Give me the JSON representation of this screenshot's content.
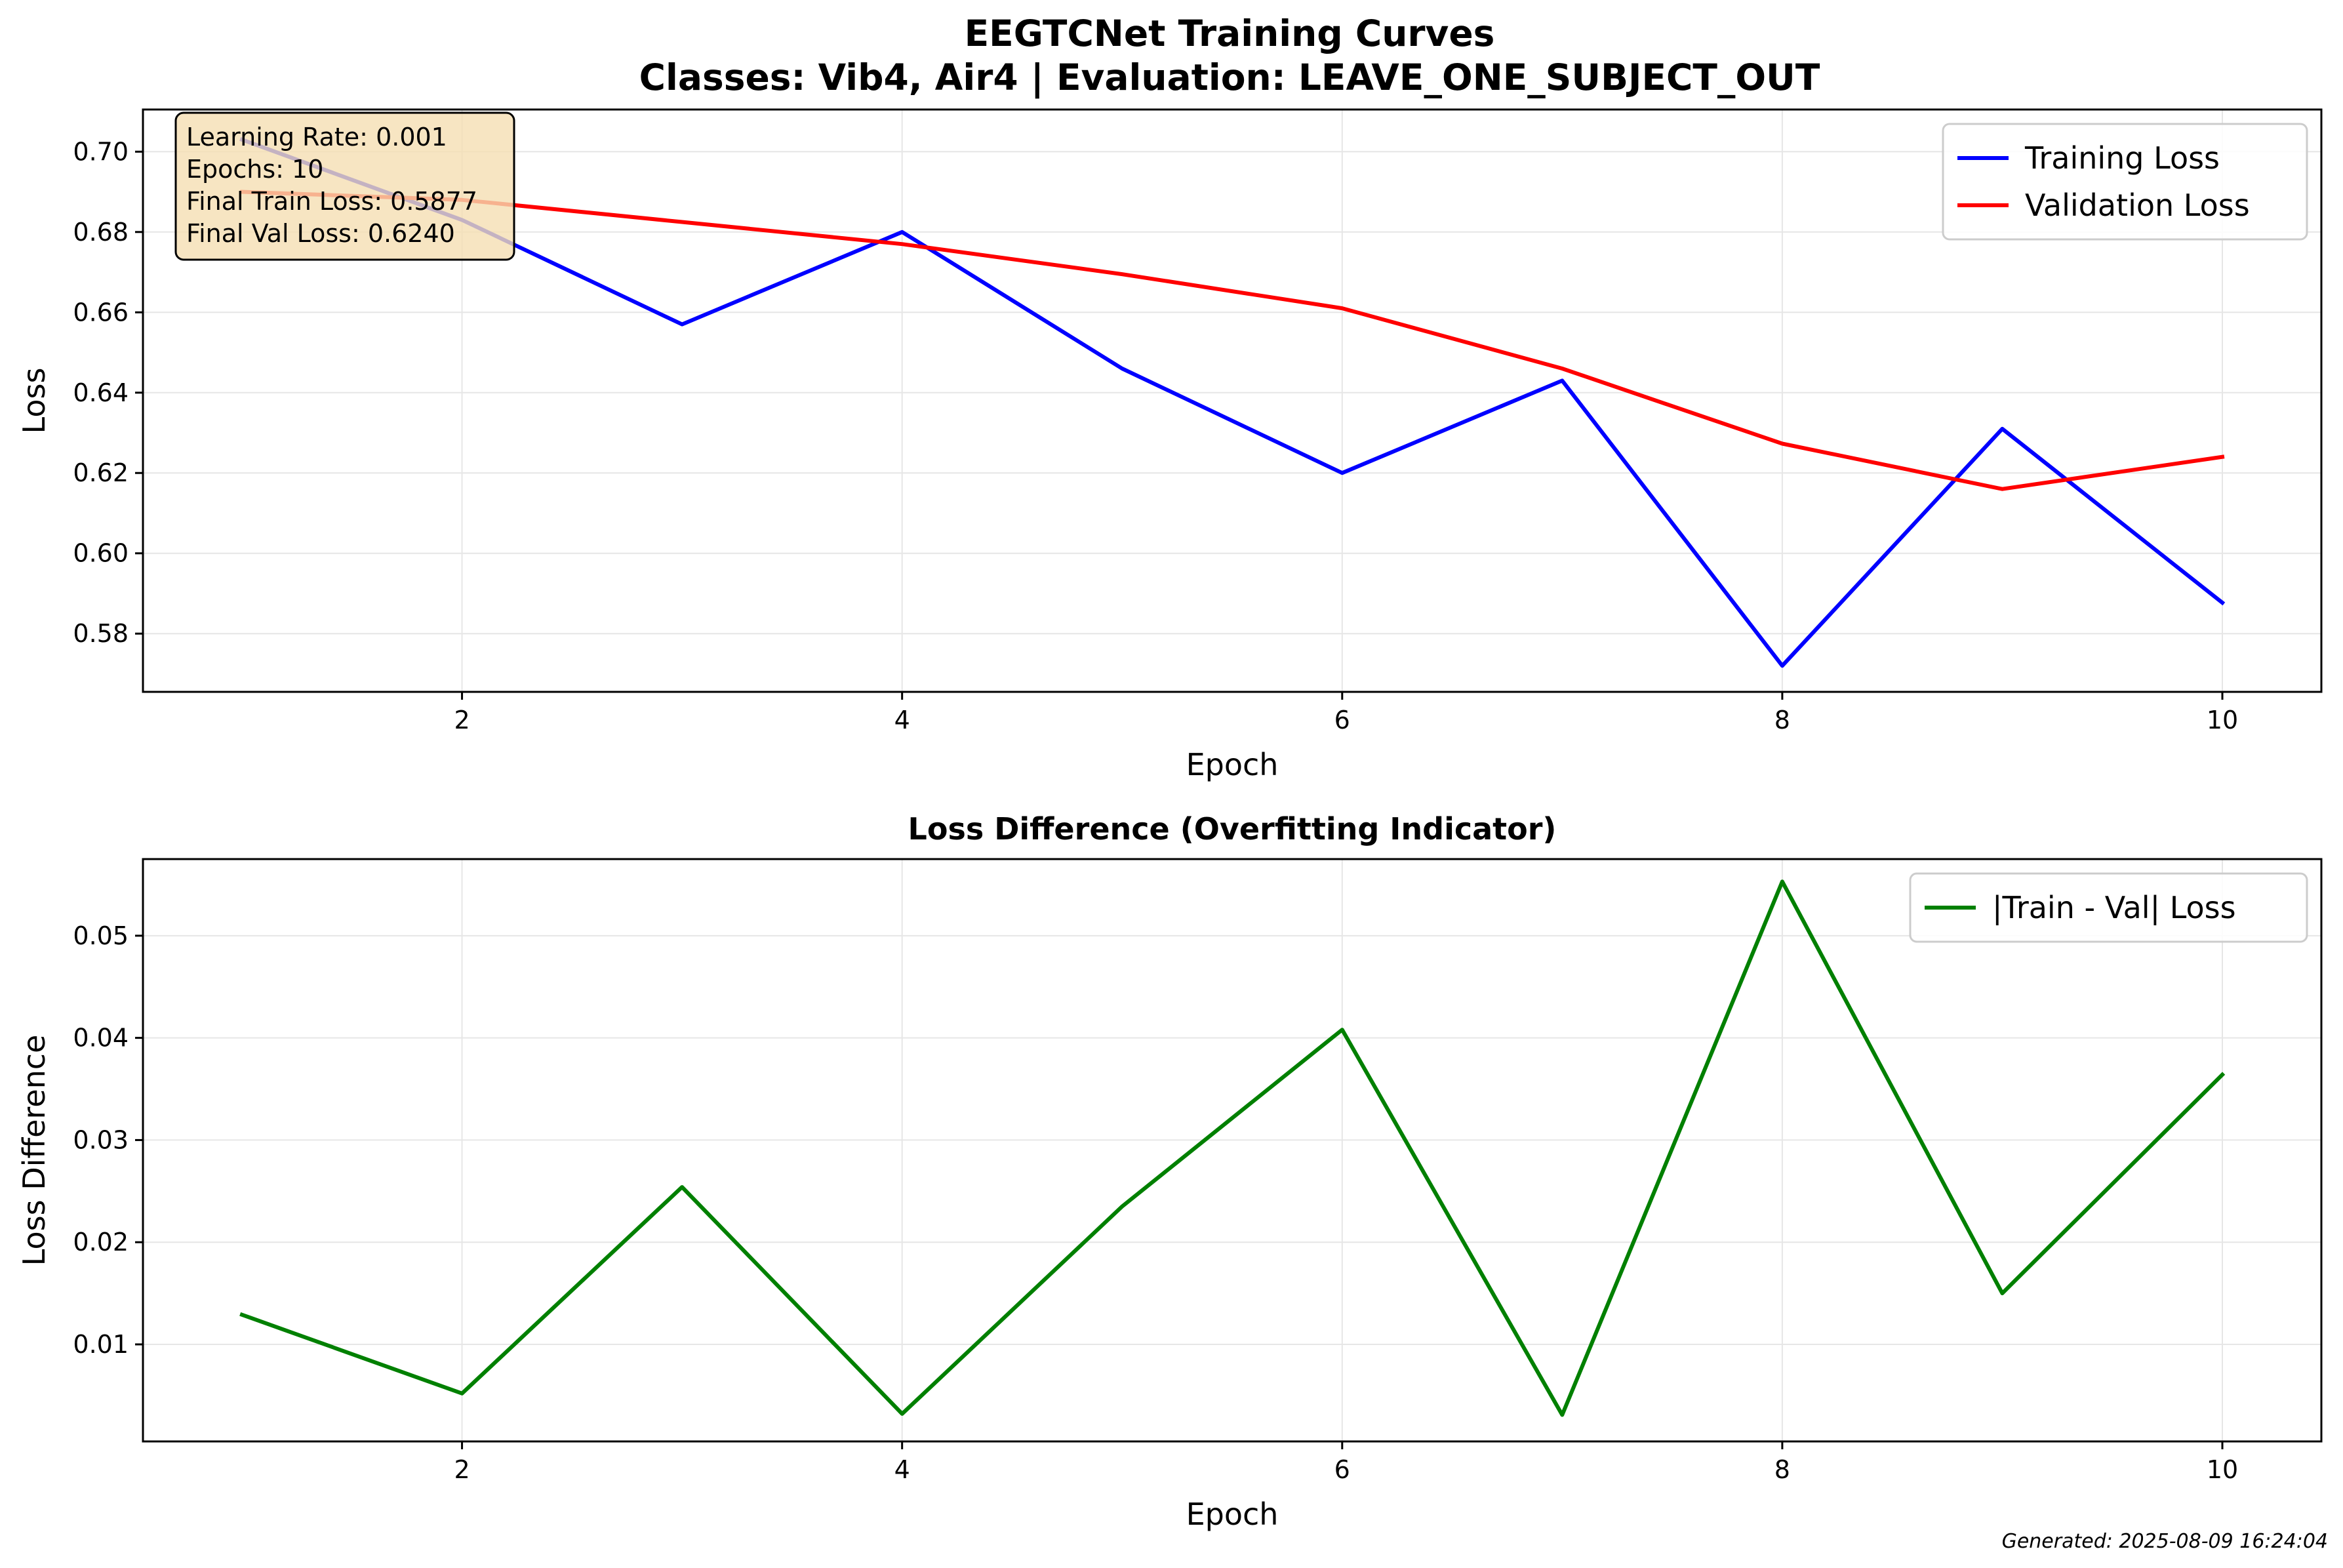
{
  "header": {
    "title": "EEGTCNet Training Curves",
    "subtitle": "Classes: Vib4, Air4 | Evaluation: LEAVE_ONE_SUBJECT_OUT"
  },
  "footer": {
    "generated": "Generated: 2025-08-09 16:24:04"
  },
  "chart_data": [
    {
      "type": "line",
      "title": "",
      "xlabel": "Epoch",
      "ylabel": "Loss",
      "xlim": [
        0.55,
        10.45
      ],
      "ylim": [
        0.5655,
        0.7105
      ],
      "xticks": [
        2,
        4,
        6,
        8,
        10
      ],
      "xtick_labels": [
        "2",
        "4",
        "6",
        "8",
        "10"
      ],
      "yticks": [
        0.58,
        0.6,
        0.62,
        0.64,
        0.66,
        0.68,
        0.7
      ],
      "ytick_labels": [
        "0.58",
        "0.60",
        "0.62",
        "0.64",
        "0.66",
        "0.68",
        "0.70"
      ],
      "grid": true,
      "legend": "top-right",
      "x": [
        1,
        2,
        3,
        4,
        5,
        6,
        7,
        8,
        9,
        10
      ],
      "series": [
        {
          "name": "Training Loss",
          "color": "#0000ff",
          "values": [
            0.703,
            0.683,
            0.657,
            0.68,
            0.646,
            0.62,
            0.643,
            0.572,
            0.631,
            0.5877
          ]
        },
        {
          "name": "Validation Loss",
          "color": "#ff0000",
          "values": [
            0.69,
            0.688,
            0.6825,
            0.677,
            0.6695,
            0.661,
            0.646,
            0.6273,
            0.616,
            0.624
          ]
        }
      ],
      "annotation": {
        "lines": [
          "Learning Rate: 0.001",
          "Epochs: 10",
          "Final Train Loss: 0.5877",
          "Final Val Loss: 0.6240"
        ],
        "box_color": "#f5deb3"
      }
    },
    {
      "type": "line",
      "title": "Loss Difference (Overfitting Indicator)",
      "xlabel": "Epoch",
      "ylabel": "Loss Difference",
      "xlim": [
        0.55,
        10.45
      ],
      "ylim": [
        0.0005,
        0.0575
      ],
      "xticks": [
        2,
        4,
        6,
        8,
        10
      ],
      "xtick_labels": [
        "2",
        "4",
        "6",
        "8",
        "10"
      ],
      "yticks": [
        0.01,
        0.02,
        0.03,
        0.04,
        0.05
      ],
      "ytick_labels": [
        "0.01",
        "0.02",
        "0.03",
        "0.04",
        "0.05"
      ],
      "grid": true,
      "legend": "top-right",
      "x": [
        1,
        2,
        3,
        4,
        5,
        6,
        7,
        8,
        9,
        10
      ],
      "series": [
        {
          "name": "|Train - Val| Loss",
          "color": "#008000",
          "values": [
            0.0129,
            0.0052,
            0.0254,
            0.0032,
            0.0235,
            0.0408,
            0.0031,
            0.0553,
            0.015,
            0.0364
          ]
        }
      ]
    }
  ]
}
